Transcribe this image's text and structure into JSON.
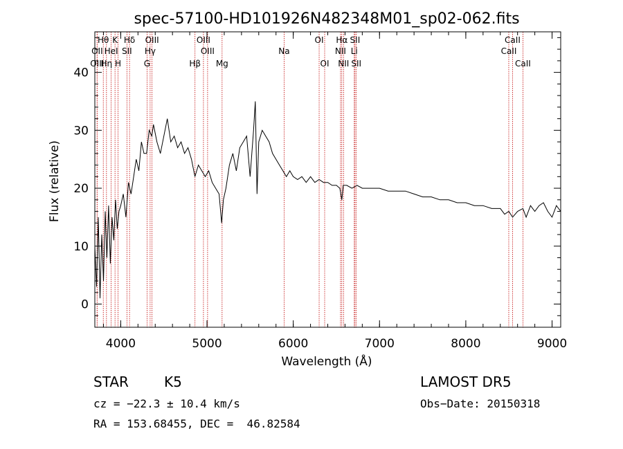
{
  "chart_data": {
    "type": "line",
    "title": "spec-57100-HD101926N482348M01_sp02-062.fits",
    "xlabel": "Wavelength (Å)",
    "ylabel": "Flux (relative)",
    "xlim": [
      3700,
      9100
    ],
    "ylim": [
      -4,
      47
    ],
    "xticks": [
      4000,
      5000,
      6000,
      7000,
      8000,
      9000
    ],
    "yticks": [
      0,
      10,
      20,
      30,
      40
    ],
    "grid": false,
    "series": [
      {
        "x": [
          3700,
          3720,
          3740,
          3760,
          3780,
          3800,
          3820,
          3840,
          3860,
          3880,
          3900,
          3920,
          3940,
          3960,
          3980,
          4000,
          4030,
          4060,
          4090,
          4120,
          4150,
          4180,
          4210,
          4240,
          4270,
          4300,
          4330,
          4360,
          4380,
          4420,
          4460,
          4500,
          4540,
          4580,
          4620,
          4660,
          4700,
          4740,
          4780,
          4820,
          4860,
          4900,
          4940,
          4980,
          5020,
          5060,
          5100,
          5140,
          5170,
          5190,
          5220,
          5260,
          5300,
          5340,
          5380,
          5420,
          5460,
          5500,
          5540,
          5560,
          5580,
          5600,
          5640,
          5680,
          5720,
          5760,
          5800,
          5840,
          5880,
          5920,
          5960,
          6000,
          6050,
          6100,
          6150,
          6200,
          6250,
          6300,
          6350,
          6400,
          6450,
          6500,
          6540,
          6563,
          6580,
          6620,
          6680,
          6740,
          6800,
          6900,
          7000,
          7100,
          7200,
          7300,
          7400,
          7500,
          7600,
          7700,
          7800,
          7900,
          8000,
          8100,
          8200,
          8300,
          8400,
          8450,
          8498,
          8542,
          8600,
          8662,
          8700,
          8750,
          8800,
          8850,
          8900,
          8950,
          9000,
          9050,
          9100
        ],
        "y": [
          10,
          3,
          15,
          1,
          12,
          4,
          16,
          8,
          17,
          7,
          15,
          11,
          18,
          13,
          16,
          17,
          19,
          15,
          21,
          19,
          22,
          25,
          23,
          28,
          26,
          26,
          30,
          29,
          31,
          28,
          26,
          29,
          32,
          28,
          29,
          27,
          28,
          26,
          27,
          25,
          22,
          24,
          23,
          22,
          23,
          21,
          20,
          19,
          14,
          18,
          20,
          24,
          26,
          23,
          27,
          28,
          29,
          22,
          30,
          35,
          19,
          28,
          30,
          29,
          28,
          26,
          25,
          24,
          23,
          22,
          23,
          22,
          21.5,
          22,
          21,
          22,
          21,
          21.5,
          21,
          21,
          20.5,
          20.5,
          20,
          18,
          20.5,
          20.5,
          20,
          20.5,
          20,
          20,
          20,
          19.5,
          19.5,
          19.5,
          19,
          18.5,
          18.5,
          18,
          18,
          17.5,
          17.5,
          17,
          17,
          16.5,
          16.5,
          15.5,
          16,
          15,
          16,
          16.5,
          15,
          17,
          16,
          17,
          17.5,
          16,
          15,
          17,
          16
        ]
      }
    ],
    "annotations": [
      {
        "label": "Hθ",
        "wavelength": 3798,
        "row": 1
      },
      {
        "label": "OII",
        "wavelength": 3727,
        "row": 2
      },
      {
        "label": "OIII",
        "wavelength": 3726,
        "row": 3
      },
      {
        "label": "HeI",
        "wavelength": 3889,
        "row": 2
      },
      {
        "label": "Hη",
        "wavelength": 3835,
        "row": 3
      },
      {
        "label": "K",
        "wavelength": 3934,
        "row": 1
      },
      {
        "label": "H",
        "wavelength": 3969,
        "row": 3
      },
      {
        "label": "Hδ",
        "wavelength": 4102,
        "row": 1
      },
      {
        "label": "SII",
        "wavelength": 4072,
        "row": 2
      },
      {
        "label": "OIII",
        "wavelength": 4363,
        "row": 1
      },
      {
        "label": "Hγ",
        "wavelength": 4341,
        "row": 2
      },
      {
        "label": "G",
        "wavelength": 4305,
        "row": 3
      },
      {
        "label": "Hβ",
        "wavelength": 4861,
        "row": 3
      },
      {
        "label": "OIII",
        "wavelength": 4959,
        "row": 1
      },
      {
        "label": "OIII",
        "wavelength": 5007,
        "row": 2
      },
      {
        "label": "Mg",
        "wavelength": 5175,
        "row": 3
      },
      {
        "label": "Na",
        "wavelength": 5894,
        "row": 2
      },
      {
        "label": "OI",
        "wavelength": 6300,
        "row": 1
      },
      {
        "label": "OI",
        "wavelength": 6364,
        "row": 3
      },
      {
        "label": "Hα",
        "wavelength": 6563,
        "row": 1
      },
      {
        "label": "NII",
        "wavelength": 6548,
        "row": 2
      },
      {
        "label": "NII",
        "wavelength": 6583,
        "row": 3
      },
      {
        "label": "SII",
        "wavelength": 6716,
        "row": 1
      },
      {
        "label": "Li",
        "wavelength": 6707,
        "row": 2
      },
      {
        "label": "SII",
        "wavelength": 6731,
        "row": 3
      },
      {
        "label": "CaII",
        "wavelength": 8542,
        "row": 1
      },
      {
        "label": "CaII",
        "wavelength": 8498,
        "row": 2
      },
      {
        "label": "CaII",
        "wavelength": 8662,
        "row": 3
      }
    ]
  },
  "info": {
    "class": "STAR",
    "subclass": "K5",
    "survey": "LAMOST DR5",
    "velocity": "cz = −22.3 ± 10.4 km/s",
    "obs_date": "Obs−Date: 20150318",
    "coords": "RA = 153.68455, DEC =  46.82584"
  },
  "colors": {
    "spectrum": "#000000",
    "lines": "#c00000"
  }
}
